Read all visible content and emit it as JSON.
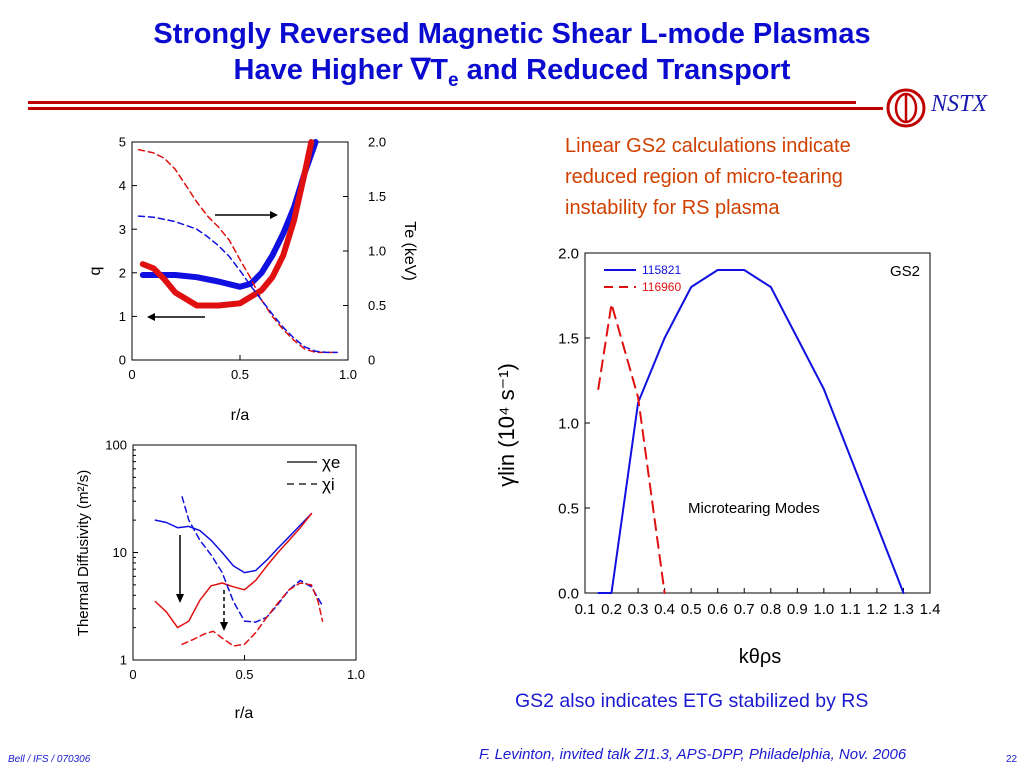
{
  "slide": {
    "title_line1": "Strongly Reversed Magnetic Shear L-mode Plasmas",
    "title_line2_pre": "Have Higher ∇T",
    "title_line2_sub": "e",
    "title_line2_post": " and Reduced Transport",
    "logo_text": "NSTX",
    "red_text": "Linear GS2 calculations indicate\nreduced region of micro-tearing\ninstability for RS plasma",
    "blue_note": "GS2 also indicates ETG stabilized by RS",
    "footer_left": "Bell / IFS / 070306",
    "footer_center": "F. Levinton, invited talk ZI1.3, APS-DPP, Philadelphia, Nov. 2006",
    "page_number": "22",
    "colors": {
      "title": "#0b0bd0",
      "rule": "#c00000",
      "red_text": "#d04000",
      "blue": "#1a1ad0",
      "plot_blue": "#1010e0",
      "plot_red": "#e01010"
    }
  },
  "chart_data": [
    {
      "type": "line",
      "id": "q-te",
      "xlabel": "r/a",
      "ylabel": "q",
      "ylabel_right": "Te (keV)",
      "xlim": [
        0,
        1
      ],
      "ylim": [
        0,
        5
      ],
      "ylim_right": [
        0,
        2
      ],
      "xticks": [
        "0",
        "0.5",
        "1.0"
      ],
      "yticks": [
        "0",
        "1",
        "2",
        "3",
        "4",
        "5"
      ],
      "yticks_right": [
        "0",
        "0.5",
        "1.0",
        "1.5",
        "2.0"
      ],
      "series": [
        {
          "color": "#1010e0",
          "style": "thick",
          "axis": "left",
          "x": [
            0.05,
            0.1,
            0.2,
            0.3,
            0.4,
            0.5,
            0.55,
            0.6,
            0.65,
            0.7,
            0.75,
            0.8,
            0.85
          ],
          "y": [
            1.95,
            1.95,
            1.95,
            1.9,
            1.8,
            1.68,
            1.75,
            2.0,
            2.4,
            2.9,
            3.5,
            4.3,
            5.0
          ]
        },
        {
          "color": "#e01010",
          "style": "thick",
          "axis": "left",
          "x": [
            0.05,
            0.1,
            0.15,
            0.2,
            0.3,
            0.4,
            0.5,
            0.6,
            0.65,
            0.7,
            0.75,
            0.8,
            0.83
          ],
          "y": [
            2.2,
            2.1,
            1.85,
            1.55,
            1.25,
            1.25,
            1.3,
            1.6,
            1.9,
            2.4,
            3.2,
            4.3,
            5.0
          ]
        },
        {
          "color": "#e01010",
          "style": "dashed",
          "axis": "right",
          "x": [
            0.03,
            0.1,
            0.15,
            0.2,
            0.25,
            0.3,
            0.35,
            0.4,
            0.45,
            0.5,
            0.55,
            0.6,
            0.65,
            0.7,
            0.75,
            0.8,
            0.85,
            0.9,
            0.95
          ],
          "y": [
            1.93,
            1.9,
            1.85,
            1.75,
            1.6,
            1.45,
            1.32,
            1.22,
            1.1,
            0.92,
            0.75,
            0.55,
            0.4,
            0.28,
            0.18,
            0.1,
            0.07,
            0.07,
            0.07
          ]
        },
        {
          "color": "#1010e0",
          "style": "dashed",
          "axis": "right",
          "x": [
            0.03,
            0.1,
            0.2,
            0.3,
            0.35,
            0.4,
            0.45,
            0.5,
            0.55,
            0.6,
            0.65,
            0.7,
            0.75,
            0.8,
            0.85,
            0.9,
            0.95
          ],
          "y": [
            1.32,
            1.31,
            1.27,
            1.2,
            1.13,
            1.05,
            0.95,
            0.82,
            0.68,
            0.55,
            0.42,
            0.3,
            0.2,
            0.12,
            0.08,
            0.07,
            0.07
          ]
        }
      ]
    },
    {
      "type": "line",
      "id": "diffusivity",
      "xlabel": "r/a",
      "ylabel": "Thermal Diffusivity (m²/s)",
      "yscale": "log",
      "xlim": [
        0,
        1
      ],
      "ylim": [
        1,
        100
      ],
      "xticks": [
        "0",
        "0.5",
        "1.0"
      ],
      "yticks": [
        "1",
        "10",
        "100"
      ],
      "legend": [
        "χe",
        "χi"
      ],
      "legend_position": "top-right",
      "series": [
        {
          "color": "#1010e0",
          "style": "solid",
          "x": [
            0.1,
            0.15,
            0.2,
            0.25,
            0.3,
            0.35,
            0.4,
            0.45,
            0.5,
            0.55,
            0.6,
            0.65,
            0.7,
            0.75,
            0.8
          ],
          "y": [
            20,
            19,
            17,
            17.5,
            16,
            13,
            10,
            7.5,
            6.5,
            6.8,
            8.5,
            11,
            14,
            18,
            23
          ]
        },
        {
          "color": "#e01010",
          "style": "solid",
          "x": [
            0.1,
            0.15,
            0.2,
            0.25,
            0.3,
            0.35,
            0.4,
            0.45,
            0.5,
            0.55,
            0.6,
            0.65,
            0.7,
            0.75,
            0.8
          ],
          "y": [
            3.5,
            2.8,
            2.0,
            2.3,
            3.6,
            4.9,
            5.2,
            4.8,
            4.5,
            5.5,
            7.5,
            10,
            13,
            17,
            23
          ]
        },
        {
          "color": "#1010e0",
          "style": "dashed",
          "x": [
            0.22,
            0.25,
            0.3,
            0.35,
            0.4,
            0.45,
            0.5,
            0.55,
            0.6,
            0.65,
            0.7,
            0.75,
            0.8,
            0.85
          ],
          "y": [
            33,
            20,
            13,
            9.5,
            6.5,
            3.5,
            2.3,
            2.25,
            2.5,
            3.3,
            4.5,
            5.5,
            4.8,
            3.2
          ]
        },
        {
          "color": "#e01010",
          "style": "dashed",
          "x": [
            0.22,
            0.27,
            0.32,
            0.36,
            0.4,
            0.45,
            0.5,
            0.55,
            0.6,
            0.65,
            0.7,
            0.75,
            0.8,
            0.83,
            0.85
          ],
          "y": [
            1.4,
            1.55,
            1.75,
            1.85,
            1.6,
            1.35,
            1.4,
            1.8,
            2.5,
            3.4,
            4.5,
            5.2,
            5.0,
            3.5,
            2.3
          ]
        }
      ]
    },
    {
      "type": "line",
      "id": "gs2",
      "xlabel": "kθρs",
      "ylabel": "γlin (10⁴ s⁻¹)",
      "xlim": [
        0.1,
        1.4
      ],
      "ylim": [
        0,
        2
      ],
      "xticks": [
        "0.1",
        "0.2",
        "0.3",
        "0.4",
        "0.5",
        "0.6",
        "0.7",
        "0.8",
        "0.9",
        "1.0",
        "1.1",
        "1.2",
        "1.3",
        "1.4"
      ],
      "yticks": [
        "0.0",
        "0.5",
        "1.0",
        "1.5",
        "2.0"
      ],
      "legend": [
        "115821",
        "116960"
      ],
      "legend_position": "top-left",
      "annotations": [
        "GS2",
        "Microtearing Modes"
      ],
      "series": [
        {
          "name": "115821",
          "color": "#1010e0",
          "style": "solid",
          "x": [
            0.15,
            0.2,
            0.3,
            0.4,
            0.5,
            0.6,
            0.7,
            0.8,
            0.9,
            1.0,
            1.1,
            1.2,
            1.3
          ],
          "y": [
            0,
            0,
            1.12,
            1.5,
            1.8,
            1.9,
            1.9,
            1.8,
            1.5,
            1.2,
            0.8,
            0.4,
            0
          ]
        },
        {
          "name": "116960",
          "color": "#e01010",
          "style": "dashed",
          "x": [
            0.15,
            0.2,
            0.3,
            0.4
          ],
          "y": [
            1.2,
            1.7,
            1.15,
            0
          ]
        }
      ]
    }
  ]
}
